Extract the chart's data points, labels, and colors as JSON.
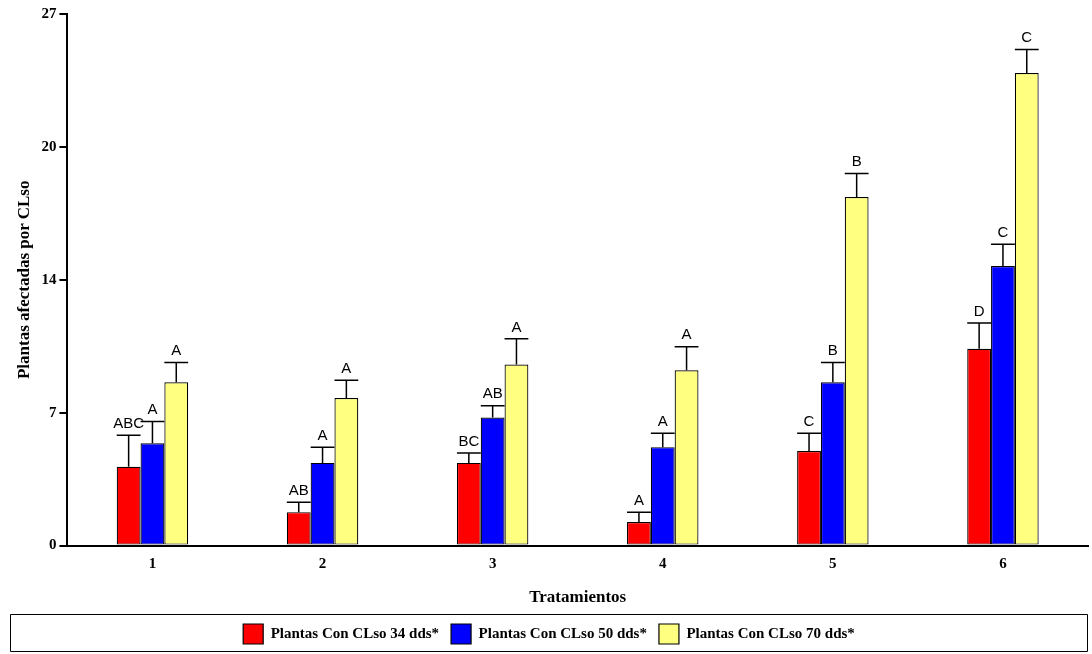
{
  "chart_data": {
    "type": "bar",
    "xlabel": "Tratamientos",
    "ylabel": "Plantas afectadas por CLso",
    "categories": [
      "1",
      "2",
      "3",
      "4",
      "5",
      "6"
    ],
    "series": [
      {
        "name": "Plantas Con CLso 34 dds*",
        "color": "#ff0000",
        "values": [
          4.0,
          1.7,
          4.2,
          1.2,
          4.8,
          10.0
        ],
        "errors": [
          [
            4.0,
            5.6
          ],
          [
            1.7,
            2.2
          ],
          [
            4.2,
            4.7
          ],
          [
            1.2,
            1.7
          ],
          [
            4.8,
            5.7
          ],
          [
            10.0,
            11.3
          ]
        ],
        "value_labels": [
          "ABC",
          "AB",
          "BC",
          "A",
          "C",
          "D"
        ]
      },
      {
        "name": "Plantas Con CLso 50 dds*",
        "color": "#0000ff",
        "values": [
          5.2,
          4.2,
          6.5,
          5.0,
          8.3,
          14.2
        ],
        "errors": [
          [
            5.2,
            6.3
          ],
          [
            4.2,
            5.0
          ],
          [
            6.5,
            7.1
          ],
          [
            5.0,
            5.7
          ],
          [
            8.3,
            9.3
          ],
          [
            14.2,
            15.3
          ]
        ],
        "value_labels": [
          "A",
          "A",
          "AB",
          "A",
          "B",
          "C"
        ]
      },
      {
        "name": "Plantas Con CLso 70 dds*",
        "color": "#ffff80",
        "values": [
          8.3,
          7.5,
          9.2,
          8.9,
          17.7,
          24.0
        ],
        "errors": [
          [
            8.3,
            9.3
          ],
          [
            7.5,
            8.4
          ],
          [
            9.2,
            10.5
          ],
          [
            8.9,
            10.1
          ],
          [
            17.7,
            18.9
          ],
          [
            24.0,
            25.2
          ]
        ],
        "value_labels": [
          "A",
          "A",
          "A",
          "A",
          "B",
          "C"
        ]
      }
    ],
    "ylim": [
      0,
      27
    ],
    "yticks": [
      0,
      {
        "value": 6.75,
        "label": "7"
      },
      {
        "value": 13.5,
        "label": "14"
      },
      {
        "value": 20.25,
        "label": "20"
      },
      27
    ],
    "grid": false,
    "legend": "bottom"
  }
}
